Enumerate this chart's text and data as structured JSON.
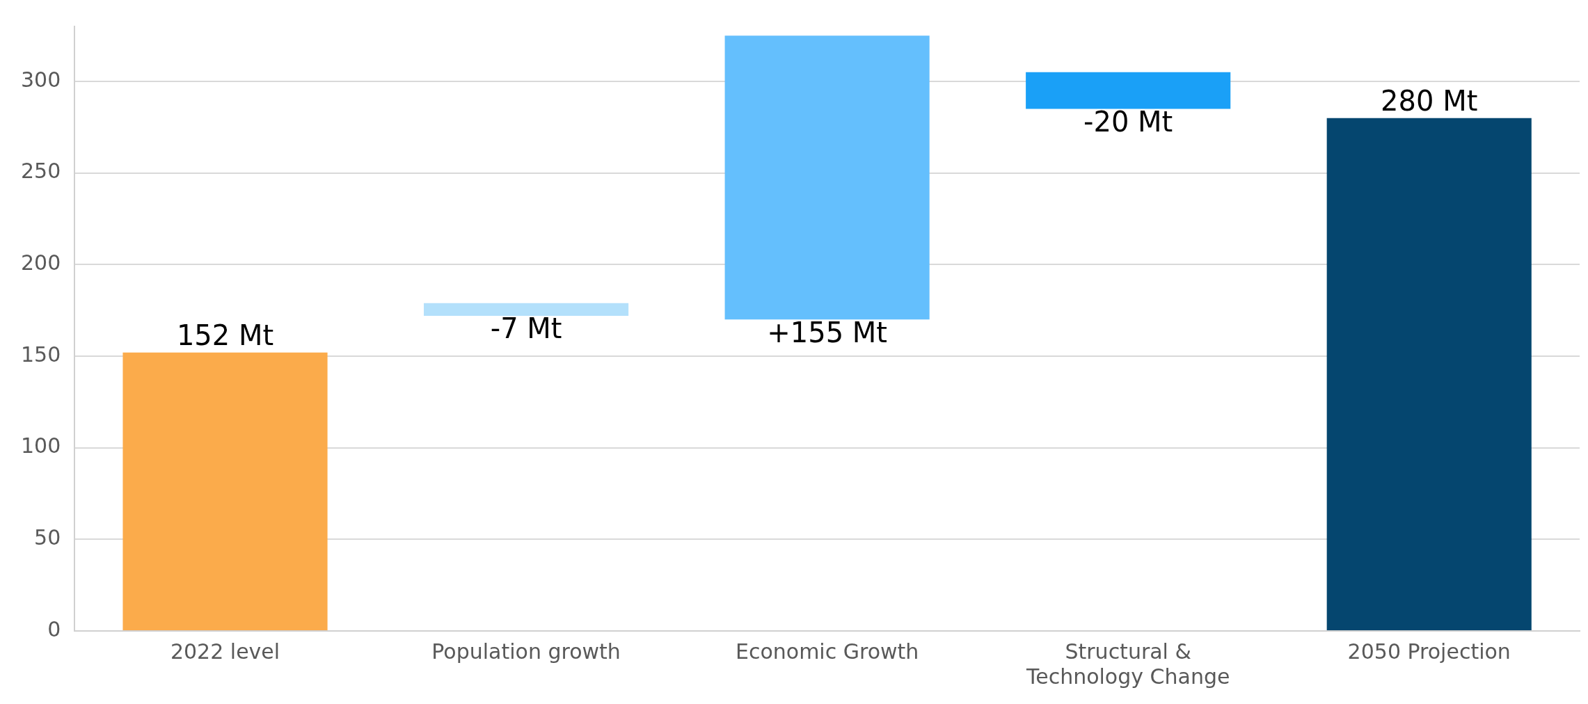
{
  "chart_data": {
    "type": "bar",
    "categories": [
      "2022 level",
      "Population growth",
      "Economic Growth",
      "Structural & Technology Change",
      "2050 Projection"
    ],
    "values": [
      152,
      -7,
      155,
      -20,
      280
    ],
    "base": [
      0,
      179,
      170,
      305,
      0
    ],
    "colors": [
      "#fbab4b",
      "#b3e0fb",
      "#64bffd",
      "#1aa0f7",
      "#05466f"
    ],
    "value_labels": [
      "152 Mt",
      "-7 Mt",
      "+155 Mt",
      "-20 Mt",
      "280 Mt"
    ],
    "ylim": [
      0,
      330
    ],
    "yticks": [
      0,
      50,
      100,
      150,
      200,
      250,
      300
    ],
    "grid": "y"
  }
}
